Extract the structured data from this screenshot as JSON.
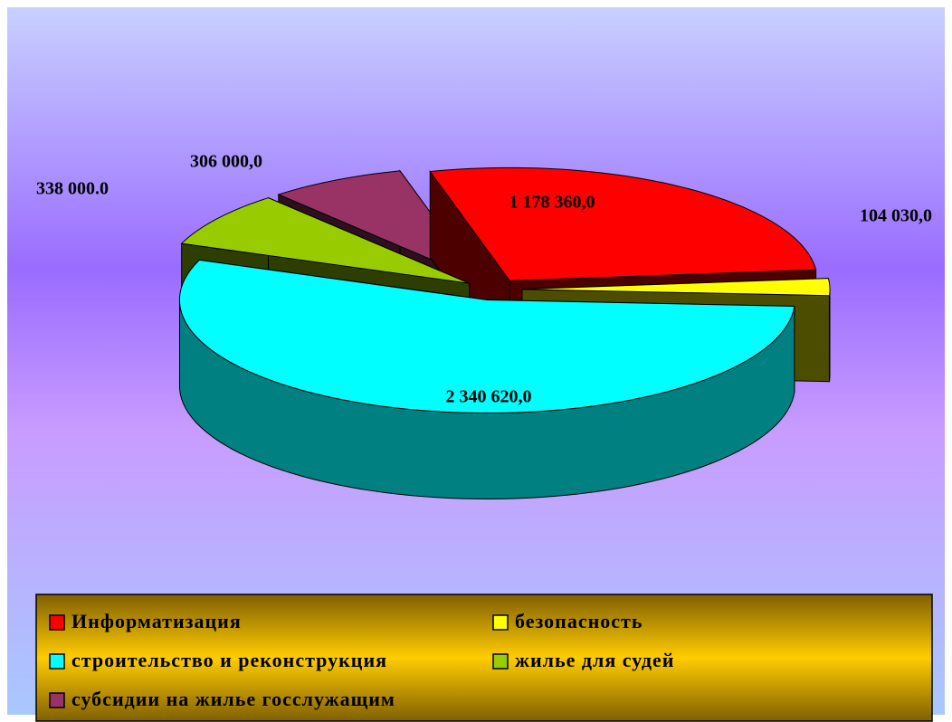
{
  "chart_data": {
    "type": "pie3d",
    "categories": [
      "Информатизация",
      "безопасность",
      "строительство и реконструкция",
      "жилье для судей",
      "субсидии на жилье госслужащим"
    ],
    "values": [
      1178360,
      104030,
      2340620,
      338000,
      306000
    ],
    "value_labels": [
      "1 178 360,0",
      "104 030,0",
      "2 340 620,0",
      "338 000.0",
      "306 000,0"
    ],
    "colors": [
      "#ff0000",
      "#ffff00",
      "#00ffff",
      "#99cc00",
      "#993366"
    ],
    "legend": "bottom"
  }
}
